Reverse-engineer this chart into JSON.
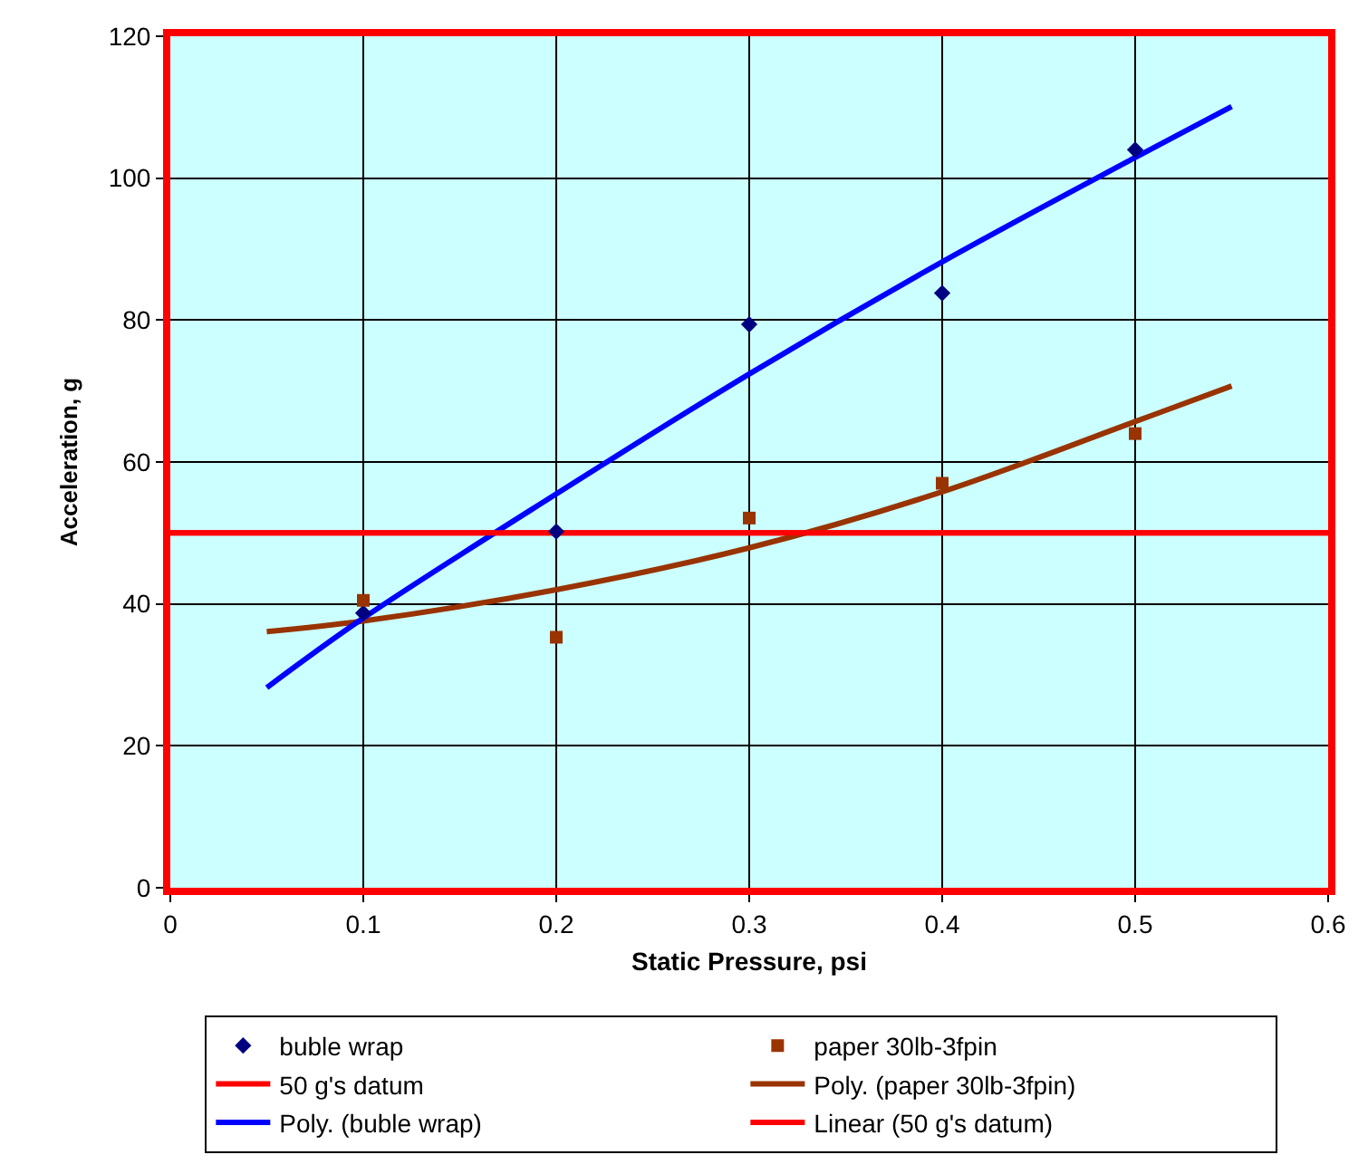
{
  "chart_data": {
    "type": "scatter",
    "xlabel": "Static Pressure, psi",
    "ylabel": "Acceleration, g",
    "xlim": [
      0,
      0.6
    ],
    "xticks": [
      0,
      0.1,
      0.2,
      0.3,
      0.4,
      0.5,
      0.6
    ],
    "ylim": [
      0,
      120
    ],
    "yticks": [
      0,
      20,
      40,
      60,
      80,
      100,
      120
    ],
    "grid": true,
    "legend": "bottom",
    "series": [
      {
        "name": "buble wrap",
        "marker": "diamond",
        "color": "#000080",
        "x": [
          0.1,
          0.2,
          0.3,
          0.4,
          0.5
        ],
        "values": [
          38.7,
          50.2,
          79.4,
          83.8,
          104
        ]
      },
      {
        "name": "paper 30lb-3fpin",
        "marker": "square",
        "color": "#993300",
        "x": [
          0.1,
          0.2,
          0.3,
          0.4,
          0.5
        ],
        "values": [
          40.5,
          35.3,
          52.1,
          57,
          64
        ]
      },
      {
        "name": "50 g's datum",
        "type": "line",
        "marker": "none",
        "color": "#ff0000",
        "x": [
          0,
          0.6
        ],
        "values": [
          50,
          50
        ]
      },
      {
        "name": "Poly. (paper 30lb-3fpin)",
        "type": "line",
        "marker": "none",
        "color": "#993300",
        "x": [
          0.05,
          0.1,
          0.2,
          0.3,
          0.4,
          0.5,
          0.55
        ],
        "values": [
          36.1,
          37.6,
          42,
          47.9,
          55.8,
          65.7,
          70.7
        ]
      },
      {
        "name": "Poly. (buble wrap)",
        "type": "line",
        "marker": "none",
        "color": "#0000ff",
        "x": [
          0.05,
          0.1,
          0.2,
          0.3,
          0.4,
          0.5,
          0.55
        ],
        "values": [
          28.2,
          38,
          55.5,
          72.4,
          88.2,
          102.9,
          110.1
        ]
      },
      {
        "name": "Linear (50 g's datum)",
        "type": "line",
        "marker": "none",
        "color": "#ff0000",
        "x": [
          0,
          0.6
        ],
        "values": [
          50,
          50
        ]
      }
    ]
  }
}
